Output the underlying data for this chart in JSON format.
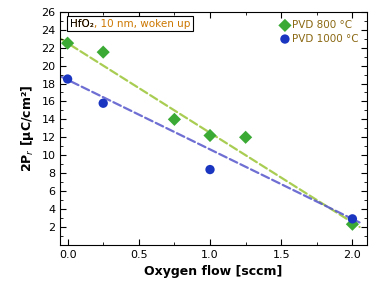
{
  "green_x": [
    0.0,
    0.25,
    0.75,
    1.0,
    1.25,
    2.0
  ],
  "green_y": [
    22.5,
    21.5,
    14.0,
    12.2,
    12.0,
    2.3
  ],
  "blue_x": [
    0.0,
    0.25,
    1.0,
    2.0
  ],
  "blue_y": [
    18.5,
    15.8,
    8.4,
    2.9
  ],
  "green_fit_x": [
    -0.05,
    2.05
  ],
  "green_fit_y": [
    23.0,
    2.0
  ],
  "blue_fit_x": [
    -0.05,
    2.05
  ],
  "blue_fit_y": [
    18.8,
    2.5
  ],
  "green_color": "#3aaa35",
  "blue_color": "#1a35c0",
  "green_line_color": "#a0c840",
  "blue_line_color": "#5555cc",
  "xlim": [
    -0.05,
    2.1
  ],
  "ylim": [
    0,
    26
  ],
  "xticks": [
    0.0,
    0.5,
    1.0,
    1.5,
    2.0
  ],
  "yticks": [
    2,
    4,
    6,
    8,
    10,
    12,
    14,
    16,
    18,
    20,
    22,
    24,
    26
  ],
  "xlabel": "Oxygen flow [sccm]",
  "ylabel": "2P$_r$ [μC/cm²]",
  "annotation_black": "HfO",
  "annotation_sub": "2",
  "annotation_orange": ", 10 nm, woken up",
  "annotation_full": "HfO₂, 10 nm, woken up",
  "legend_green": "PVD 800 °C",
  "legend_blue": "PVD 1000 °C",
  "legend_text_color": "#8B6914",
  "tick_labelsize": 8,
  "axis_labelsize": 9,
  "marker_size": 45
}
